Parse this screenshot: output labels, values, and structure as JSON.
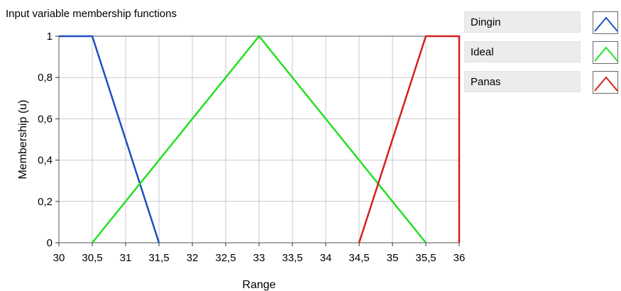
{
  "chart_data": {
    "type": "line",
    "title": "Input variable membership functions",
    "xlabel": "Range",
    "ylabel": "Membership (u)",
    "xlim": [
      30,
      36
    ],
    "ylim": [
      0,
      1
    ],
    "x_ticks": [
      30,
      30.5,
      31,
      31.5,
      32,
      32.5,
      33,
      33.5,
      34,
      34.5,
      35,
      35.5,
      36
    ],
    "x_tick_labels": [
      "30",
      "30,5",
      "31",
      "31,5",
      "32",
      "32,5",
      "33",
      "33,5",
      "34",
      "34,5",
      "35",
      "35,5",
      "36"
    ],
    "y_ticks": [
      0,
      0.2,
      0.4,
      0.6,
      0.8,
      1
    ],
    "y_tick_labels": [
      "0",
      "0,2",
      "0,4",
      "0,6",
      "0,8",
      "1"
    ],
    "grid": true,
    "legend_position": "right",
    "series": [
      {
        "name": "Dingin",
        "color": "#1f4fc1",
        "x": [
          30,
          30.5,
          31.5
        ],
        "y": [
          1,
          1,
          0
        ]
      },
      {
        "name": "Ideal",
        "color": "#22e022",
        "x": [
          30.5,
          33,
          35.5
        ],
        "y": [
          0,
          1,
          0
        ]
      },
      {
        "name": "Panas",
        "color": "#d42020",
        "x": [
          34.5,
          35.5,
          36,
          36
        ],
        "y": [
          0,
          1,
          1,
          0
        ]
      }
    ]
  }
}
